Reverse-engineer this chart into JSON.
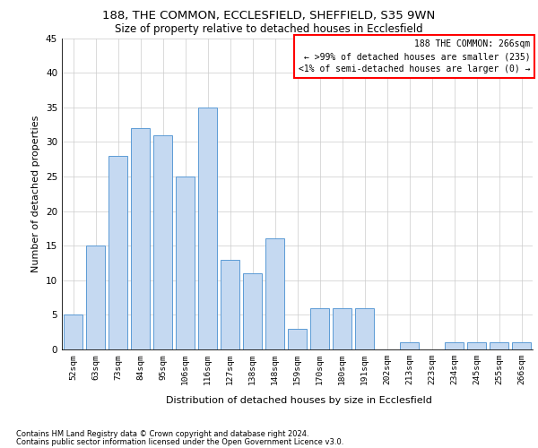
{
  "title1": "188, THE COMMON, ECCLESFIELD, SHEFFIELD, S35 9WN",
  "title2": "Size of property relative to detached houses in Ecclesfield",
  "xlabel": "Distribution of detached houses by size in Ecclesfield",
  "ylabel": "Number of detached properties",
  "footnote1": "Contains HM Land Registry data © Crown copyright and database right 2024.",
  "footnote2": "Contains public sector information licensed under the Open Government Licence v3.0.",
  "categories": [
    "52sqm",
    "63sqm",
    "73sqm",
    "84sqm",
    "95sqm",
    "106sqm",
    "116sqm",
    "127sqm",
    "138sqm",
    "148sqm",
    "159sqm",
    "170sqm",
    "180sqm",
    "191sqm",
    "202sqm",
    "213sqm",
    "223sqm",
    "234sqm",
    "245sqm",
    "255sqm",
    "266sqm"
  ],
  "values": [
    5,
    15,
    28,
    32,
    31,
    25,
    35,
    13,
    11,
    16,
    3,
    6,
    6,
    6,
    0,
    1,
    0,
    1,
    1,
    1,
    1
  ],
  "bar_color": "#c5d9f1",
  "bar_edge_color": "#5b9bd5",
  "annotation_lines": [
    "188 THE COMMON: 266sqm",
    "← >99% of detached houses are smaller (235)",
    "<1% of semi-detached houses are larger (0) →"
  ],
  "ylim": [
    0,
    45
  ],
  "yticks": [
    0,
    5,
    10,
    15,
    20,
    25,
    30,
    35,
    40,
    45
  ],
  "background_color": "#ffffff",
  "grid_color": "#cccccc"
}
